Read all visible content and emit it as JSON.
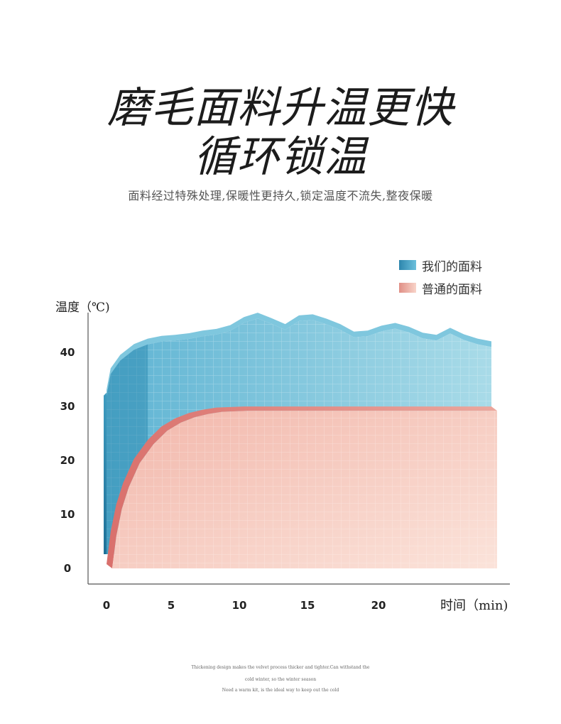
{
  "headline": {
    "line1": "磨毛面料升温更快",
    "line2": "循环锁温"
  },
  "subtitle": "面料经过特殊处理,保暖性更持久,锁定温度不流失,整夜保暖",
  "footer": {
    "line1": "Thickening design makes the velvet process thicker and tighter.Can withstand the",
    "line2": "cold winter, so the winter season",
    "line3": "Need a warm kit, is the ideal way to keep out the cold"
  },
  "colors": {
    "ours": "#4fa9c8",
    "ours_dark": "#2d86ad",
    "normal": "#f4c3b7",
    "normal_dark": "#db7f79",
    "axis": "#555555"
  },
  "chart_data": {
    "type": "area",
    "title": "",
    "xlabel": "时间（min)",
    "ylabel": "温度（℃)",
    "xlim": [
      0,
      28
    ],
    "ylim": [
      0,
      42
    ],
    "x_ticks": [
      "0",
      "5",
      "10",
      "15",
      "20"
    ],
    "y_ticks": [
      "0",
      "10",
      "20",
      "30",
      "40"
    ],
    "legend_position": "top-right",
    "series": [
      {
        "name": "我们的面料",
        "color": "#4fa9c8",
        "x": [
          0,
          0.3,
          1,
          2,
          3,
          4,
          5,
          6,
          7,
          8,
          9,
          10,
          11,
          12,
          13,
          14,
          15,
          16,
          17,
          18,
          19,
          20,
          21,
          22,
          23,
          24,
          25,
          26,
          27,
          28
        ],
        "y": [
          32,
          36,
          38.5,
          40.5,
          41.5,
          42,
          42.2,
          42.5,
          43,
          43.3,
          44,
          45.5,
          46.3,
          45.3,
          44.2,
          45.8,
          46,
          45.2,
          44.2,
          42.8,
          43,
          43.9,
          44.4,
          43.7,
          42.6,
          42.2,
          43.5,
          42.3,
          41.5,
          41
        ]
      },
      {
        "name": "普通的面料",
        "color": "#f4c3b7",
        "x": [
          0,
          0.3,
          0.7,
          1.2,
          2,
          3,
          4,
          5,
          6,
          7,
          8,
          9,
          10,
          12,
          14,
          16,
          18,
          20,
          22,
          24,
          26,
          28
        ],
        "y": [
          0,
          6,
          11,
          15,
          19.5,
          23,
          25.5,
          27,
          28,
          28.6,
          29,
          29.1,
          29.2,
          29.2,
          29.2,
          29.2,
          29.2,
          29.2,
          29.2,
          29.2,
          29.2,
          29.2
        ]
      }
    ]
  }
}
